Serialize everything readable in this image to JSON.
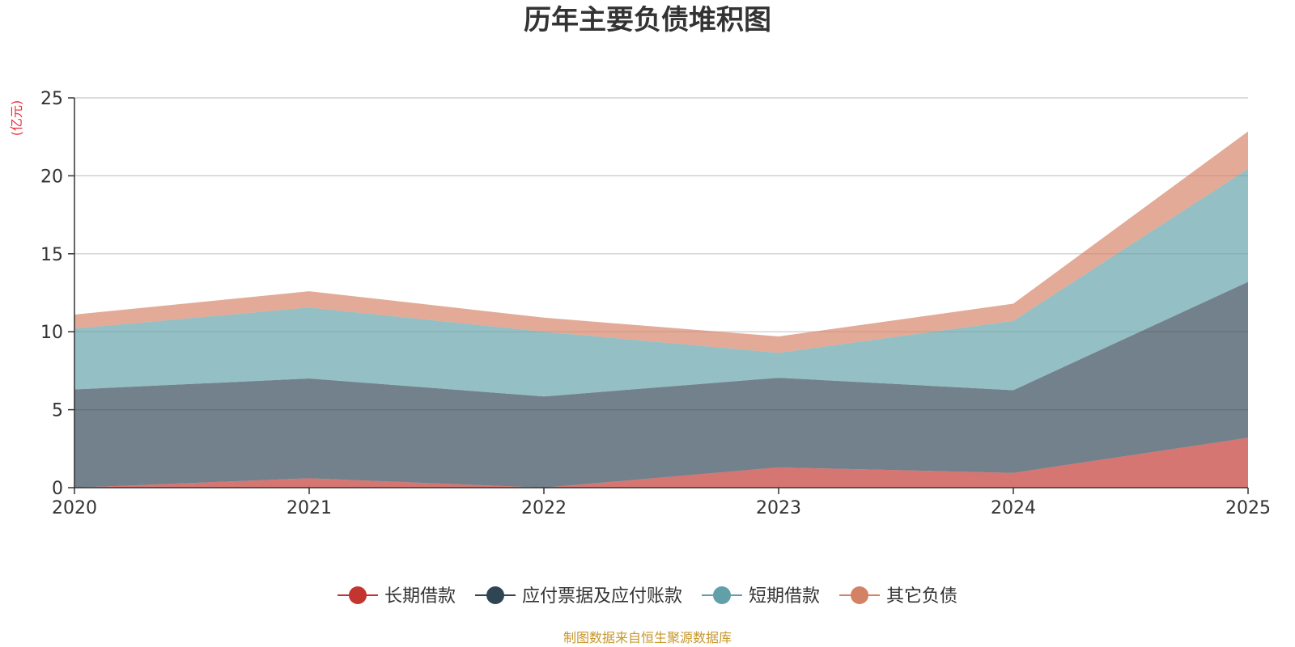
{
  "chart_data": {
    "type": "area",
    "stacked": true,
    "title": "历年主要负债堆积图",
    "unit_label": "(亿元)",
    "xlabel": "",
    "ylabel": "",
    "x": [
      "2020",
      "2021",
      "2022",
      "2023",
      "2024",
      "2025"
    ],
    "ylim": [
      0,
      25
    ],
    "yticks": [
      "0",
      "5",
      "10",
      "15",
      "20",
      "25"
    ],
    "grid": true,
    "legend_position": "bottom",
    "series": [
      {
        "name": "长期借款",
        "color": "#c23531",
        "values": [
          0.0,
          0.6,
          0.0,
          1.3,
          0.95,
          3.2
        ]
      },
      {
        "name": "应付票据及应付账款",
        "color": "#2f4554",
        "values": [
          6.3,
          6.4,
          5.85,
          5.75,
          5.3,
          10.0
        ]
      },
      {
        "name": "短期借款",
        "color": "#61a0a8",
        "values": [
          3.9,
          4.55,
          4.15,
          1.6,
          4.45,
          7.25
        ]
      },
      {
        "name": "其它负债",
        "color": "#d48265",
        "values": [
          0.9,
          1.05,
          0.9,
          1.05,
          1.1,
          2.4
        ]
      }
    ],
    "source": "制图数据来自恒生聚源数据库"
  }
}
